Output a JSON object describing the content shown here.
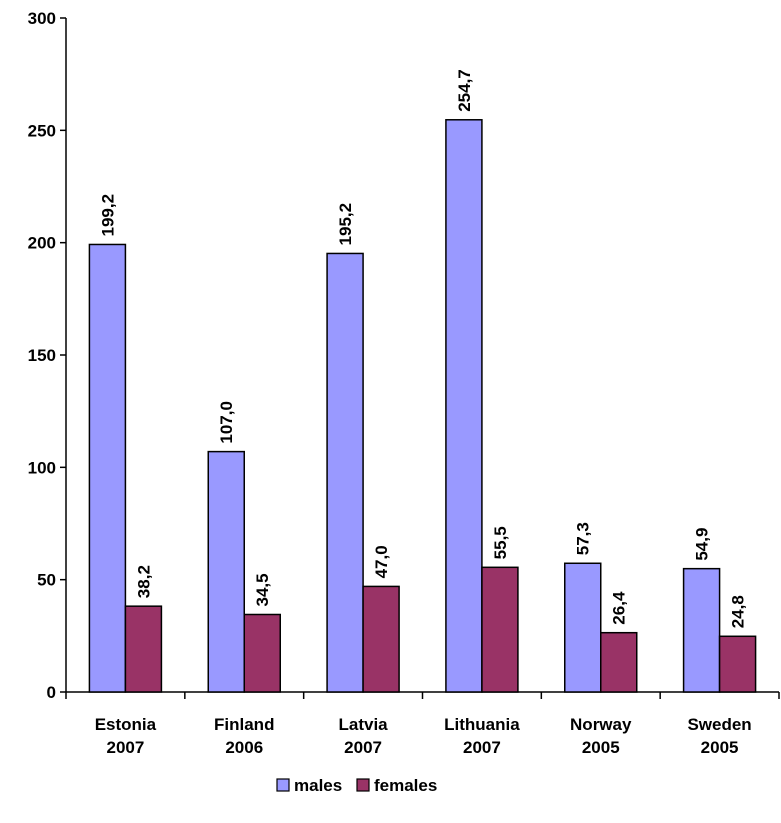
{
  "chart_data": {
    "type": "bar",
    "categories": [
      [
        "Estonia",
        "2007"
      ],
      [
        "Finland",
        "2006"
      ],
      [
        "Latvia",
        "2007"
      ],
      [
        "Lithuania",
        "2007"
      ],
      [
        "Norway",
        "2005"
      ],
      [
        "Sweden",
        "2005"
      ]
    ],
    "series": [
      {
        "name": "males",
        "color": "#9999ff",
        "values": [
          199.2,
          107.0,
          195.2,
          254.7,
          57.3,
          54.9
        ],
        "labels": [
          "199,2",
          "107,0",
          "195,2",
          "254,7",
          "57,3",
          "54,9"
        ]
      },
      {
        "name": "females",
        "color": "#993366",
        "values": [
          38.2,
          34.5,
          47.0,
          55.5,
          26.4,
          24.8
        ],
        "labels": [
          "38,2",
          "34,5",
          "47,0",
          "55,5",
          "26,4",
          "24,8"
        ]
      }
    ],
    "ylim": [
      0,
      300
    ],
    "yticks": [
      0,
      50,
      100,
      150,
      200,
      250,
      300
    ],
    "grid": false,
    "legend_position": "bottom"
  }
}
